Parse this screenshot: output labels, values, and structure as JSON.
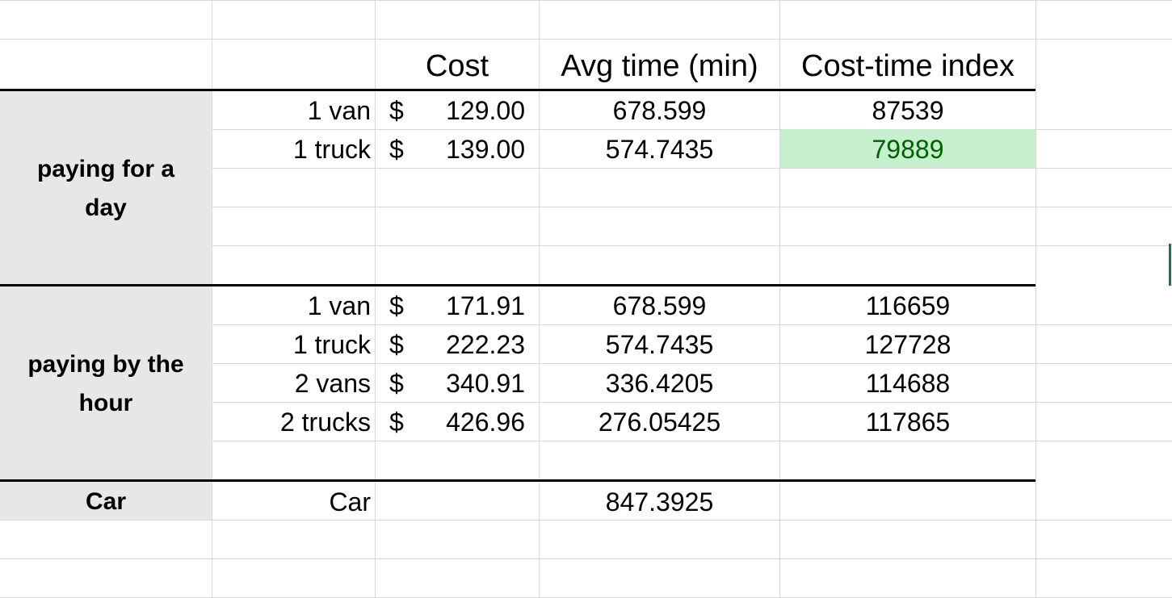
{
  "headers": {
    "cost": "Cost",
    "avg_time": "Avg time (min)",
    "cost_time_index": "Cost-time index"
  },
  "groups": {
    "day": "paying for a day",
    "hour": "paying by the hour",
    "car": "Car"
  },
  "day_rows": [
    {
      "vehicle": "1 van",
      "currency": "$",
      "cost": "129.00",
      "avg_time": "678.599",
      "index": "87539"
    },
    {
      "vehicle": "1 truck",
      "currency": "$",
      "cost": "139.00",
      "avg_time": "574.7435",
      "index": "79889"
    }
  ],
  "hour_rows": [
    {
      "vehicle": "1 van",
      "currency": "$",
      "cost": "171.91",
      "avg_time": "678.599",
      "index": "116659"
    },
    {
      "vehicle": "1 truck",
      "currency": "$",
      "cost": "222.23",
      "avg_time": "574.7435",
      "index": "127728"
    },
    {
      "vehicle": "2 vans",
      "currency": "$",
      "cost": "340.91",
      "avg_time": "336.4205",
      "index": "114688"
    },
    {
      "vehicle": "2 trucks",
      "currency": "$",
      "cost": "426.96",
      "avg_time": "276.05425",
      "index": "117865"
    }
  ],
  "car_row": {
    "vehicle": "Car",
    "avg_time": "847.3925"
  },
  "colors": {
    "highlight_fill": "#c6efce",
    "highlight_text": "#006100",
    "group_fill": "#e7e7e7",
    "gridline": "#d9d9d9",
    "selection": "#217346"
  }
}
